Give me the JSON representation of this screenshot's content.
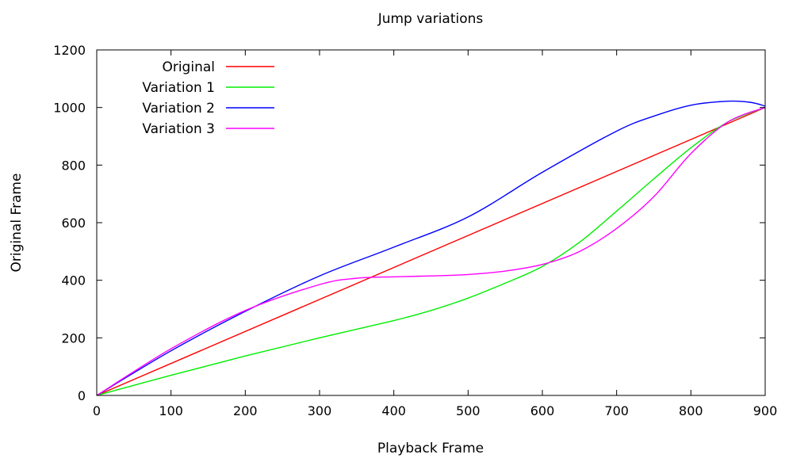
{
  "chart_data": {
    "type": "line",
    "title": "Jump variations",
    "xlabel": "Playback Frame",
    "ylabel": "Original Frame",
    "xlim": [
      0,
      900
    ],
    "ylim": [
      0,
      1200
    ],
    "xticks": [
      0,
      100,
      200,
      300,
      400,
      500,
      600,
      700,
      800,
      900
    ],
    "yticks": [
      0,
      200,
      400,
      600,
      800,
      1000,
      1200
    ],
    "grid": false,
    "legend_position": "top-left",
    "series": [
      {
        "name": "Original",
        "color": "#ff0000",
        "x": [
          0,
          900
        ],
        "y": [
          0,
          1000
        ]
      },
      {
        "name": "Variation 1",
        "color": "#00ee00",
        "x": [
          0,
          100,
          200,
          300,
          400,
          450,
          500,
          550,
          600,
          650,
          700,
          750,
          800,
          850,
          900
        ],
        "y": [
          0,
          70,
          137,
          200,
          260,
          295,
          338,
          390,
          448,
          532,
          640,
          752,
          860,
          950,
          1000
        ]
      },
      {
        "name": "Variation 2",
        "color": "#0000ff",
        "x": [
          0,
          100,
          200,
          300,
          400,
          500,
          600,
          700,
          750,
          800,
          850,
          880,
          900
        ],
        "y": [
          0,
          155,
          292,
          415,
          515,
          620,
          775,
          918,
          970,
          1008,
          1022,
          1018,
          1005
        ]
      },
      {
        "name": "Variation 3",
        "color": "#ff00ff",
        "x": [
          0,
          100,
          200,
          300,
          350,
          400,
          450,
          500,
          550,
          600,
          650,
          700,
          750,
          800,
          850,
          900
        ],
        "y": [
          0,
          162,
          295,
          385,
          407,
          412,
          415,
          420,
          432,
          455,
          500,
          580,
          690,
          840,
          950,
          1000
        ]
      }
    ]
  }
}
